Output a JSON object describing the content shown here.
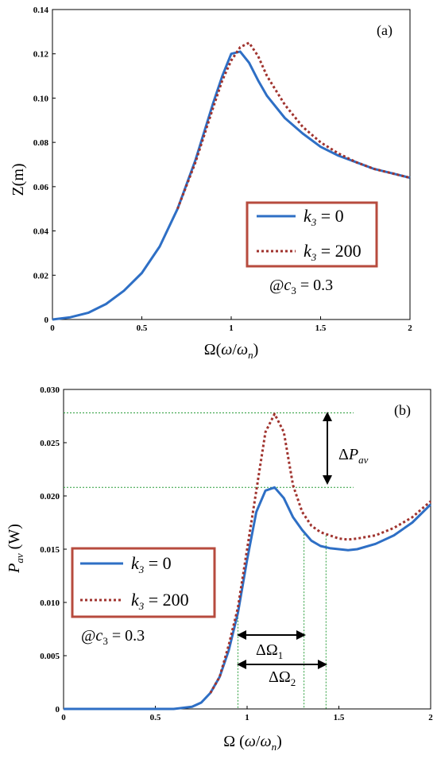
{
  "chart_data": [
    {
      "type": "line",
      "panel_label": "(a)",
      "xlabel": "Ω(ω/ω_n)",
      "ylabel": "Z(m)",
      "xlim": [
        0,
        2
      ],
      "ylim": [
        0,
        0.14
      ],
      "x_ticks": [
        "0",
        "0.5",
        "1",
        "1.5",
        "2"
      ],
      "y_ticks": [
        "0",
        "0.02",
        "0.04",
        "0.06",
        "0.08",
        "0.10",
        "0.12",
        "0.14"
      ],
      "legend_position": "lower-right",
      "note": "@c₃ = 0.3",
      "series": [
        {
          "name": "k₃ = 0",
          "color": "#2e6fc5",
          "style": "solid",
          "x": [
            0,
            0.1,
            0.2,
            0.3,
            0.4,
            0.5,
            0.6,
            0.7,
            0.8,
            0.9,
            0.95,
            1.0,
            1.05,
            1.1,
            1.15,
            1.2,
            1.3,
            1.4,
            1.5,
            1.6,
            1.7,
            1.8,
            1.9,
            2.0
          ],
          "y": [
            0,
            0.001,
            0.003,
            0.007,
            0.013,
            0.021,
            0.033,
            0.05,
            0.072,
            0.098,
            0.11,
            0.12,
            0.121,
            0.116,
            0.108,
            0.101,
            0.091,
            0.084,
            0.078,
            0.074,
            0.071,
            0.068,
            0.066,
            0.064
          ]
        },
        {
          "name": "k₃ = 200",
          "color": "#a0332e",
          "style": "dotted",
          "x": [
            0.7,
            0.8,
            0.9,
            0.95,
            1.0,
            1.05,
            1.1,
            1.15,
            1.2,
            1.3,
            1.4,
            1.5,
            1.6,
            1.7,
            1.8,
            1.9,
            2.0
          ],
          "y": [
            0.05,
            0.071,
            0.096,
            0.108,
            0.117,
            0.123,
            0.125,
            0.119,
            0.11,
            0.097,
            0.087,
            0.08,
            0.075,
            0.071,
            0.068,
            0.066,
            0.064
          ]
        }
      ]
    },
    {
      "type": "line",
      "panel_label": "(b)",
      "xlabel": "Ω (ω/ω_n)",
      "ylabel": "P_av (W)",
      "xlim": [
        0,
        2
      ],
      "ylim": [
        0,
        0.03
      ],
      "x_ticks": [
        "0",
        "0.5",
        "1",
        "1.5",
        "2"
      ],
      "y_ticks": [
        "0",
        "0.005",
        "0.010",
        "0.015",
        "0.020",
        "0.025",
        "0.030"
      ],
      "legend_position": "left-middle",
      "note": "@c₃ = 0.3",
      "annotations": {
        "delta_p": "ΔP_av",
        "delta_omega_1": "ΔΩ₁",
        "delta_omega_2": "ΔΩ₂",
        "hline_high": 0.0278,
        "hline_low": 0.0208,
        "vline_left": 0.95,
        "vline_mid": 1.31,
        "vline_right": 1.43
      },
      "series": [
        {
          "name": "k₃ = 0",
          "color": "#2e6fc5",
          "style": "solid",
          "x": [
            0,
            0.6,
            0.7,
            0.75,
            0.8,
            0.85,
            0.9,
            0.95,
            1.0,
            1.05,
            1.1,
            1.15,
            1.2,
            1.25,
            1.3,
            1.35,
            1.4,
            1.45,
            1.5,
            1.55,
            1.6,
            1.7,
            1.8,
            1.9,
            2.0
          ],
          "y": [
            0,
            0,
            0.0002,
            0.0006,
            0.0015,
            0.003,
            0.0055,
            0.009,
            0.014,
            0.0185,
            0.0205,
            0.0208,
            0.0198,
            0.018,
            0.0168,
            0.0158,
            0.0153,
            0.0151,
            0.015,
            0.0149,
            0.015,
            0.0155,
            0.0163,
            0.0175,
            0.0192
          ]
        },
        {
          "name": "k₃ = 200",
          "color": "#a0332e",
          "style": "dotted",
          "x": [
            0.8,
            0.85,
            0.9,
            0.95,
            1.0,
            1.05,
            1.1,
            1.15,
            1.2,
            1.25,
            1.3,
            1.35,
            1.4,
            1.45,
            1.5,
            1.55,
            1.6,
            1.7,
            1.8,
            1.9,
            2.0
          ],
          "y": [
            0.0015,
            0.003,
            0.006,
            0.0095,
            0.015,
            0.0205,
            0.026,
            0.0277,
            0.026,
            0.021,
            0.0185,
            0.0172,
            0.0166,
            0.0163,
            0.016,
            0.0159,
            0.016,
            0.0163,
            0.017,
            0.018,
            0.0195
          ]
        }
      ]
    }
  ]
}
